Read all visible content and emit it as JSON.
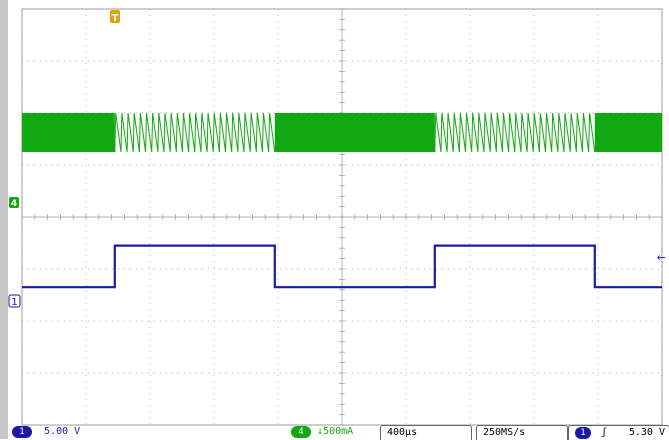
{
  "colors": {
    "background": "#ffffff",
    "side_panel": "#c8c8c8",
    "graticule": "#9a9a9a",
    "ch1": "#1a1aa6",
    "ch4": "#11a811",
    "trigger_marker": "#e0a010"
  },
  "channels": {
    "ch1": {
      "label": "1",
      "scale": "5.00 V"
    },
    "ch4": {
      "label": "4",
      "scale": "500mA",
      "coupling_icon": "↓"
    }
  },
  "horizontal": {
    "timebase": "400µs",
    "sample_rate": "250MS/s"
  },
  "trigger": {
    "source": "1",
    "slope_icon": "ʃ",
    "level": "5.30 V",
    "level_marker": "←",
    "position_marker": "T"
  },
  "chart_data": {
    "type": "line",
    "x_unit": "div",
    "xlim": [
      0,
      10
    ],
    "ylim": [
      -4,
      4
    ],
    "grid": true,
    "series": [
      {
        "name": "1",
        "shape": "square wave",
        "x": [
          0,
          1.45,
          1.45,
          3.95,
          3.95,
          6.45,
          6.45,
          8.95,
          8.95,
          10
        ],
        "y": [
          -1.35,
          -1.35,
          -0.55,
          -0.55,
          -1.35,
          -1.35,
          -0.55,
          -0.55,
          -1.35,
          -1.35
        ]
      },
      {
        "name": "4",
        "shape": "switching ripple",
        "band_top": 2.0,
        "band_bottom": 1.25,
        "dense_segments": [
          [
            0,
            1.45
          ],
          [
            3.95,
            6.45
          ],
          [
            8.95,
            10
          ]
        ],
        "sawtooth_segments": [
          [
            1.45,
            3.95
          ],
          [
            6.45,
            8.95
          ]
        ]
      }
    ]
  }
}
